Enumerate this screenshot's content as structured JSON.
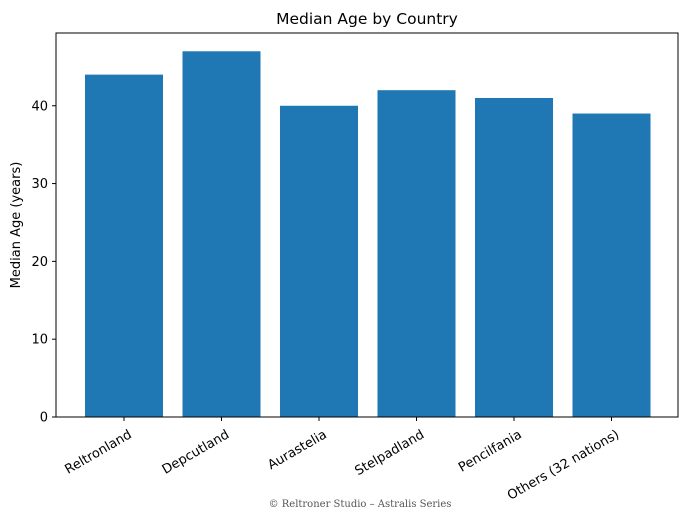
{
  "chart_data": {
    "type": "bar",
    "title": "Median Age by Country",
    "xlabel": "",
    "ylabel": "Median Age (years)",
    "categories": [
      "Reltronland",
      "Depcutland",
      "Aurastelia",
      "Stelpadland",
      "Pencilfania",
      "Others (32 nations)"
    ],
    "values": [
      44,
      47,
      40,
      42,
      41,
      39
    ],
    "yticks": [
      0,
      10,
      20,
      30,
      40
    ],
    "ylim": [
      0,
      49.35
    ],
    "grid": false,
    "legend": "none",
    "bar_color": "#1f77b4"
  },
  "footer": "© Reltroner Studio – Astralis Series"
}
